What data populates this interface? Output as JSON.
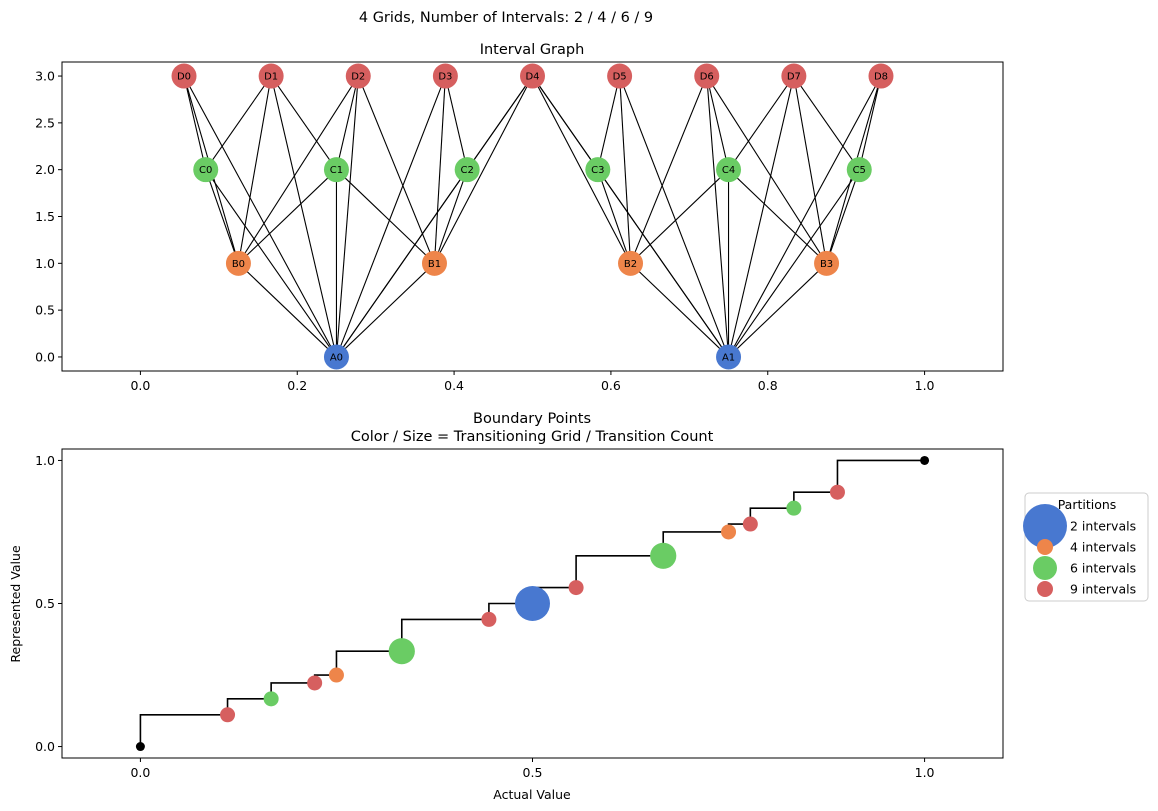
{
  "figure_title": "4 Grids, Number of Intervals: 2 / 4 / 6 / 9",
  "colors": {
    "A": "#4878d0",
    "B": "#ee854a",
    "C": "#6acc64",
    "D": "#d65f5f",
    "line": "#000000",
    "endpoint": "#000000"
  },
  "chart_data": [
    {
      "type": "scatter",
      "title": "Interval Graph",
      "xlabel": "",
      "ylabel": "",
      "xlim": [
        -0.1,
        1.1
      ],
      "ylim": [
        -0.15,
        3.15
      ],
      "xticks": [
        0.0,
        0.2,
        0.4,
        0.6,
        0.8,
        1.0
      ],
      "xtick_labels": [
        "0.0",
        "0.2",
        "0.4",
        "0.6",
        "0.8",
        "1.0"
      ],
      "yticks": [
        0.0,
        0.5,
        1.0,
        1.5,
        2.0,
        2.5,
        3.0
      ],
      "ytick_labels": [
        "0.0",
        "0.5",
        "1.0",
        "1.5",
        "2.0",
        "2.5",
        "3.0"
      ],
      "grid": false,
      "nodes": [
        {
          "label": "A0",
          "group": "A",
          "x": 0.25,
          "y": 0
        },
        {
          "label": "A1",
          "group": "A",
          "x": 0.75,
          "y": 0
        },
        {
          "label": "B0",
          "group": "B",
          "x": 0.125,
          "y": 1
        },
        {
          "label": "B1",
          "group": "B",
          "x": 0.375,
          "y": 1
        },
        {
          "label": "B2",
          "group": "B",
          "x": 0.625,
          "y": 1
        },
        {
          "label": "B3",
          "group": "B",
          "x": 0.875,
          "y": 1
        },
        {
          "label": "C0",
          "group": "C",
          "x": 0.0833,
          "y": 2
        },
        {
          "label": "C1",
          "group": "C",
          "x": 0.25,
          "y": 2
        },
        {
          "label": "C2",
          "group": "C",
          "x": 0.4167,
          "y": 2
        },
        {
          "label": "C3",
          "group": "C",
          "x": 0.5833,
          "y": 2
        },
        {
          "label": "C4",
          "group": "C",
          "x": 0.75,
          "y": 2
        },
        {
          "label": "C5",
          "group": "C",
          "x": 0.9167,
          "y": 2
        },
        {
          "label": "D0",
          "group": "D",
          "x": 0.0556,
          "y": 3
        },
        {
          "label": "D1",
          "group": "D",
          "x": 0.1667,
          "y": 3
        },
        {
          "label": "D2",
          "group": "D",
          "x": 0.2778,
          "y": 3
        },
        {
          "label": "D3",
          "group": "D",
          "x": 0.3889,
          "y": 3
        },
        {
          "label": "D4",
          "group": "D",
          "x": 0.5,
          "y": 3
        },
        {
          "label": "D5",
          "group": "D",
          "x": 0.6111,
          "y": 3
        },
        {
          "label": "D6",
          "group": "D",
          "x": 0.7222,
          "y": 3
        },
        {
          "label": "D7",
          "group": "D",
          "x": 0.8333,
          "y": 3
        },
        {
          "label": "D8",
          "group": "D",
          "x": 0.9444,
          "y": 3
        }
      ],
      "edges": [
        [
          "A0",
          "B0"
        ],
        [
          "A0",
          "B1"
        ],
        [
          "A0",
          "C0"
        ],
        [
          "A0",
          "C1"
        ],
        [
          "A0",
          "C2"
        ],
        [
          "A0",
          "D0"
        ],
        [
          "A0",
          "D1"
        ],
        [
          "A0",
          "D2"
        ],
        [
          "A0",
          "D3"
        ],
        [
          "A0",
          "D4"
        ],
        [
          "A1",
          "B2"
        ],
        [
          "A1",
          "B3"
        ],
        [
          "A1",
          "C3"
        ],
        [
          "A1",
          "C4"
        ],
        [
          "A1",
          "C5"
        ],
        [
          "A1",
          "D4"
        ],
        [
          "A1",
          "D5"
        ],
        [
          "A1",
          "D6"
        ],
        [
          "A1",
          "D7"
        ],
        [
          "A1",
          "D8"
        ],
        [
          "B0",
          "C0"
        ],
        [
          "B0",
          "C1"
        ],
        [
          "B0",
          "D0"
        ],
        [
          "B0",
          "D1"
        ],
        [
          "B0",
          "D2"
        ],
        [
          "B1",
          "C1"
        ],
        [
          "B1",
          "C2"
        ],
        [
          "B1",
          "D2"
        ],
        [
          "B1",
          "D3"
        ],
        [
          "B1",
          "D4"
        ],
        [
          "B2",
          "C3"
        ],
        [
          "B2",
          "C4"
        ],
        [
          "B2",
          "D4"
        ],
        [
          "B2",
          "D5"
        ],
        [
          "B2",
          "D6"
        ],
        [
          "B3",
          "C4"
        ],
        [
          "B3",
          "C5"
        ],
        [
          "B3",
          "D6"
        ],
        [
          "B3",
          "D7"
        ],
        [
          "B3",
          "D8"
        ],
        [
          "C0",
          "D0"
        ],
        [
          "C0",
          "D1"
        ],
        [
          "C1",
          "D1"
        ],
        [
          "C1",
          "D2"
        ],
        [
          "C2",
          "D3"
        ],
        [
          "C2",
          "D4"
        ],
        [
          "C3",
          "D4"
        ],
        [
          "C3",
          "D5"
        ],
        [
          "C4",
          "D6"
        ],
        [
          "C4",
          "D7"
        ],
        [
          "C5",
          "D7"
        ],
        [
          "C5",
          "D8"
        ]
      ]
    },
    {
      "type": "scatter",
      "title": "Boundary Points",
      "subtitle": "Color / Size = Transitioning Grid / Transition Count",
      "xlabel": "Actual Value",
      "ylabel": "Represented Value",
      "xlim": [
        -0.1,
        1.1
      ],
      "ylim": [
        -0.04,
        1.04
      ],
      "xticks": [
        0.0,
        0.5,
        1.0
      ],
      "xtick_labels": [
        "0.0",
        "0.5",
        "1.0"
      ],
      "yticks": [
        0.0,
        0.5,
        1.0
      ],
      "ytick_labels": [
        "0.0",
        "0.5",
        "1.0"
      ],
      "grid": false,
      "legend": {
        "title": "Partitions",
        "placement": "right, outside",
        "entries": [
          {
            "label": "2 intervals",
            "group": "A"
          },
          {
            "label": "4 intervals",
            "group": "B"
          },
          {
            "label": "6 intervals",
            "group": "C"
          },
          {
            "label": "9 intervals",
            "group": "D"
          }
        ]
      },
      "step_line": {
        "x": [
          0,
          0.1111,
          0.1667,
          0.2222,
          0.25,
          0.3333,
          0.4444,
          0.5,
          0.5556,
          0.6667,
          0.75,
          0.7778,
          0.8333,
          0.8889,
          1.0
        ],
        "y": [
          0,
          0.1111,
          0.1667,
          0.2222,
          0.25,
          0.3333,
          0.4444,
          0.5,
          0.5556,
          0.6667,
          0.75,
          0.7778,
          0.8333,
          0.8889,
          1.0
        ]
      },
      "endpoints": [
        {
          "x": 0,
          "y": 0
        },
        {
          "x": 1,
          "y": 1
        }
      ],
      "points": [
        {
          "x": 0.1111,
          "y": 0.1111,
          "group": "D",
          "count": 1
        },
        {
          "x": 0.1667,
          "y": 0.1667,
          "group": "C",
          "count": 1
        },
        {
          "x": 0.2222,
          "y": 0.2222,
          "group": "D",
          "count": 1
        },
        {
          "x": 0.25,
          "y": 0.25,
          "group": "B",
          "count": 1
        },
        {
          "x": 0.3333,
          "y": 0.3333,
          "group": "C",
          "count": 2
        },
        {
          "x": 0.4444,
          "y": 0.4444,
          "group": "D",
          "count": 1
        },
        {
          "x": 0.5,
          "y": 0.5,
          "group": "A",
          "count": 4
        },
        {
          "x": 0.5556,
          "y": 0.5556,
          "group": "D",
          "count": 1
        },
        {
          "x": 0.6667,
          "y": 0.6667,
          "group": "C",
          "count": 2
        },
        {
          "x": 0.75,
          "y": 0.75,
          "group": "B",
          "count": 1
        },
        {
          "x": 0.7778,
          "y": 0.7778,
          "group": "D",
          "count": 1
        },
        {
          "x": 0.8333,
          "y": 0.8333,
          "group": "C",
          "count": 1
        },
        {
          "x": 0.8889,
          "y": 0.8889,
          "group": "D",
          "count": 1
        }
      ]
    }
  ]
}
